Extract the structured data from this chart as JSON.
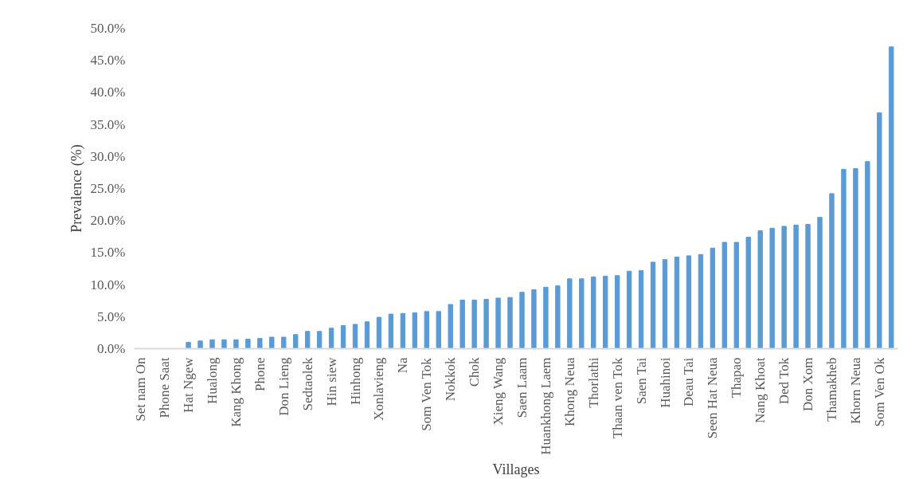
{
  "chart_data": {
    "type": "bar",
    "xlabel": "Villages",
    "ylabel": "Prevalence (%)",
    "categories": [
      "Set nam On",
      null,
      "Phone Saat",
      null,
      "Hat Ngew",
      null,
      "Hualong",
      null,
      "Kang Khong",
      null,
      "Phone",
      null,
      "Don Lieng",
      null,
      "Sedtaolek",
      null,
      "Hin siew",
      null,
      "Hinhong",
      null,
      "Xonlavieng",
      null,
      "Na",
      null,
      "Som Ven Tok",
      null,
      "Nokkok",
      null,
      "Chok",
      null,
      "Xieng Wang",
      null,
      "Saen Laam",
      null,
      "Huankhong Laem",
      null,
      "Khong Neua",
      null,
      "Thorlathi",
      null,
      "Thaan ven Tok",
      null,
      "Saen Tai",
      null,
      "Huahinoi",
      null,
      "Deau Tai",
      null,
      "Seen Hat Neua",
      null,
      "Thapao",
      null,
      "Nang Khoat",
      null,
      "Ded Tok",
      null,
      "Don Xom",
      null,
      "Thamakheb",
      null,
      "Khorn Neua",
      null,
      "Som Ven Ok",
      null
    ],
    "values": [
      0,
      0,
      0,
      0,
      1.0,
      1.2,
      1.4,
      1.4,
      1.4,
      1.5,
      1.6,
      1.8,
      1.8,
      2.2,
      2.7,
      2.7,
      3.2,
      3.6,
      3.8,
      4.2,
      4.9,
      5.4,
      5.5,
      5.6,
      5.8,
      5.8,
      6.9,
      7.6,
      7.6,
      7.7,
      7.9,
      8.0,
      8.8,
      9.2,
      9.6,
      9.8,
      10.9,
      10.9,
      11.2,
      11.3,
      11.4,
      12.1,
      12.2,
      13.5,
      13.9,
      14.3,
      14.5,
      14.7,
      15.7,
      16.6,
      16.6,
      17.4,
      18.4,
      18.8,
      19.1,
      19.3,
      19.4,
      20.5,
      24.2,
      28.0,
      28.1,
      29.2,
      36.8,
      47.1
    ],
    "color": "#5b9bd5",
    "ylim": [
      0,
      50
    ],
    "yticks": [
      {
        "value": 0,
        "label": "0.0%"
      },
      {
        "value": 5,
        "label": "5.0%"
      },
      {
        "value": 10,
        "label": "10.0%"
      },
      {
        "value": 15,
        "label": "15.0%"
      },
      {
        "value": 20,
        "label": "20.0%"
      },
      {
        "value": 25,
        "label": "25.0%"
      },
      {
        "value": 30,
        "label": "30.0%"
      },
      {
        "value": 35,
        "label": "35.0%"
      },
      {
        "value": 40,
        "label": "40.0%"
      },
      {
        "value": 45,
        "label": "45.0%"
      },
      {
        "value": 50,
        "label": "50.0%"
      }
    ],
    "grid": false
  }
}
